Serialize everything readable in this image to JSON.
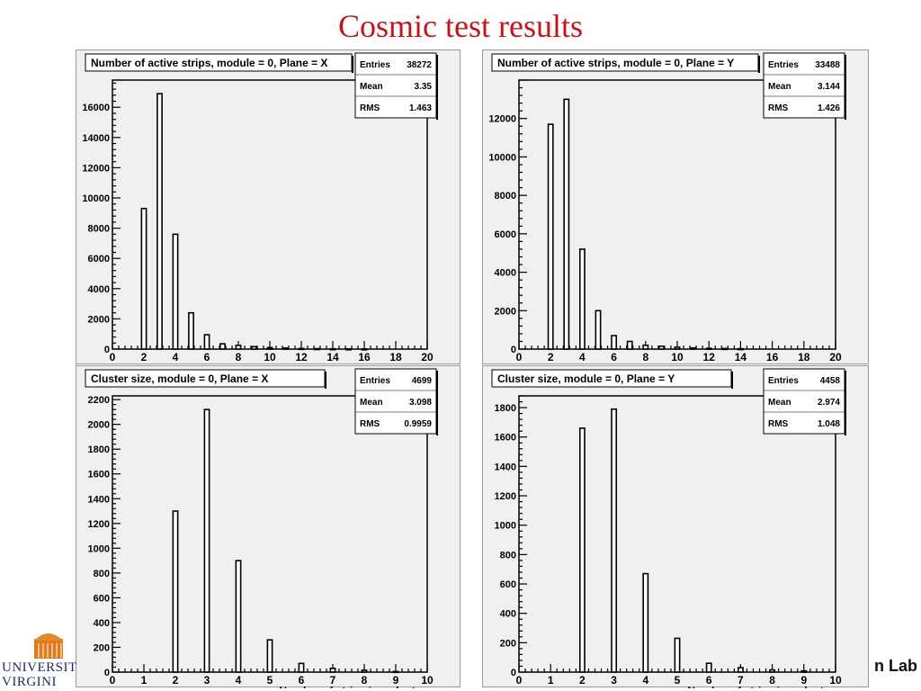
{
  "slide": {
    "title": "Cosmic test results",
    "footer_right": "n Lab",
    "logo_line1": "UNIVERSIT",
    "logo_line2": "VIRGINI"
  },
  "chart_data": [
    {
      "type": "bar",
      "title": "Number of active strips, module = 0, Plane = X",
      "stats": [
        {
          "label": "Entries",
          "value": "38272"
        },
        {
          "label": "Mean",
          "value": "3.35"
        },
        {
          "label": "RMS",
          "value": "1.463"
        }
      ],
      "xlabel": "",
      "xlim": [
        0,
        20
      ],
      "ylim": [
        0,
        17800
      ],
      "x_ticks": [
        0,
        2,
        4,
        6,
        8,
        10,
        12,
        14,
        16,
        18,
        20
      ],
      "y_ticks": [
        0,
        2000,
        4000,
        6000,
        8000,
        10000,
        12000,
        14000,
        16000
      ],
      "bars": [
        {
          "x": 2,
          "value": 9300
        },
        {
          "x": 3,
          "value": 16900
        },
        {
          "x": 4,
          "value": 7600
        },
        {
          "x": 5,
          "value": 2400
        },
        {
          "x": 6,
          "value": 950
        },
        {
          "x": 7,
          "value": 350
        },
        {
          "x": 8,
          "value": 250
        },
        {
          "x": 9,
          "value": 160
        },
        {
          "x": 10,
          "value": 100
        },
        {
          "x": 11,
          "value": 70
        },
        {
          "x": 12,
          "value": 40
        },
        {
          "x": 13,
          "value": 30
        },
        {
          "x": 14,
          "value": 20
        },
        {
          "x": 15,
          "value": 15
        },
        {
          "x": 16,
          "value": 10
        }
      ]
    },
    {
      "type": "bar",
      "title": "Number of active strips, module = 0, Plane = Y",
      "stats": [
        {
          "label": "Entries",
          "value": "33488"
        },
        {
          "label": "Mean",
          "value": "3.144"
        },
        {
          "label": "RMS",
          "value": "1.426"
        }
      ],
      "xlabel": "",
      "xlim": [
        0,
        20
      ],
      "ylim": [
        0,
        14000
      ],
      "x_ticks": [
        0,
        2,
        4,
        6,
        8,
        10,
        12,
        14,
        16,
        18,
        20
      ],
      "y_ticks": [
        0,
        2000,
        4000,
        6000,
        8000,
        10000,
        12000
      ],
      "bars": [
        {
          "x": 2,
          "value": 11700
        },
        {
          "x": 3,
          "value": 13000
        },
        {
          "x": 4,
          "value": 5200
        },
        {
          "x": 5,
          "value": 2000
        },
        {
          "x": 6,
          "value": 700
        },
        {
          "x": 7,
          "value": 400
        },
        {
          "x": 8,
          "value": 200
        },
        {
          "x": 9,
          "value": 150
        },
        {
          "x": 10,
          "value": 100
        },
        {
          "x": 11,
          "value": 60
        },
        {
          "x": 12,
          "value": 40
        },
        {
          "x": 13,
          "value": 30
        },
        {
          "x": 14,
          "value": 20
        }
      ]
    },
    {
      "type": "bar",
      "title": "Cluster size, module = 0, Plane = X",
      "stats": [
        {
          "label": "Entries",
          "value": "4699"
        },
        {
          "label": "Mean",
          "value": "3.098"
        },
        {
          "label": "RMS",
          "value": "0.9959"
        }
      ],
      "xlabel": "Number of strips in a cluster",
      "xlim": [
        0,
        10
      ],
      "ylim": [
        0,
        2230
      ],
      "x_ticks": [
        0,
        1,
        2,
        3,
        4,
        5,
        6,
        7,
        8,
        9,
        10
      ],
      "y_ticks": [
        0,
        200,
        400,
        600,
        800,
        1000,
        1200,
        1400,
        1600,
        1800,
        2000,
        2200
      ],
      "bars": [
        {
          "x": 2,
          "value": 1300
        },
        {
          "x": 3,
          "value": 2120
        },
        {
          "x": 4,
          "value": 900
        },
        {
          "x": 5,
          "value": 260
        },
        {
          "x": 6,
          "value": 70
        },
        {
          "x": 7,
          "value": 30
        },
        {
          "x": 8,
          "value": 15
        },
        {
          "x": 9,
          "value": 5
        }
      ]
    },
    {
      "type": "bar",
      "title": "Cluster size, module = 0, Plane = Y",
      "stats": [
        {
          "label": "Entries",
          "value": "4458"
        },
        {
          "label": "Mean",
          "value": "2.974"
        },
        {
          "label": "RMS",
          "value": "1.048"
        }
      ],
      "xlabel": "Number of strips in a cluster",
      "xlim": [
        0,
        10
      ],
      "ylim": [
        0,
        1880
      ],
      "x_ticks": [
        0,
        1,
        2,
        3,
        4,
        5,
        6,
        7,
        8,
        9,
        10
      ],
      "y_ticks": [
        0,
        200,
        400,
        600,
        800,
        1000,
        1200,
        1400,
        1600,
        1800
      ],
      "bars": [
        {
          "x": 2,
          "value": 1660
        },
        {
          "x": 3,
          "value": 1790
        },
        {
          "x": 4,
          "value": 670
        },
        {
          "x": 5,
          "value": 230
        },
        {
          "x": 6,
          "value": 60
        },
        {
          "x": 7,
          "value": 30
        },
        {
          "x": 8,
          "value": 15
        },
        {
          "x": 9,
          "value": 8
        }
      ]
    }
  ]
}
